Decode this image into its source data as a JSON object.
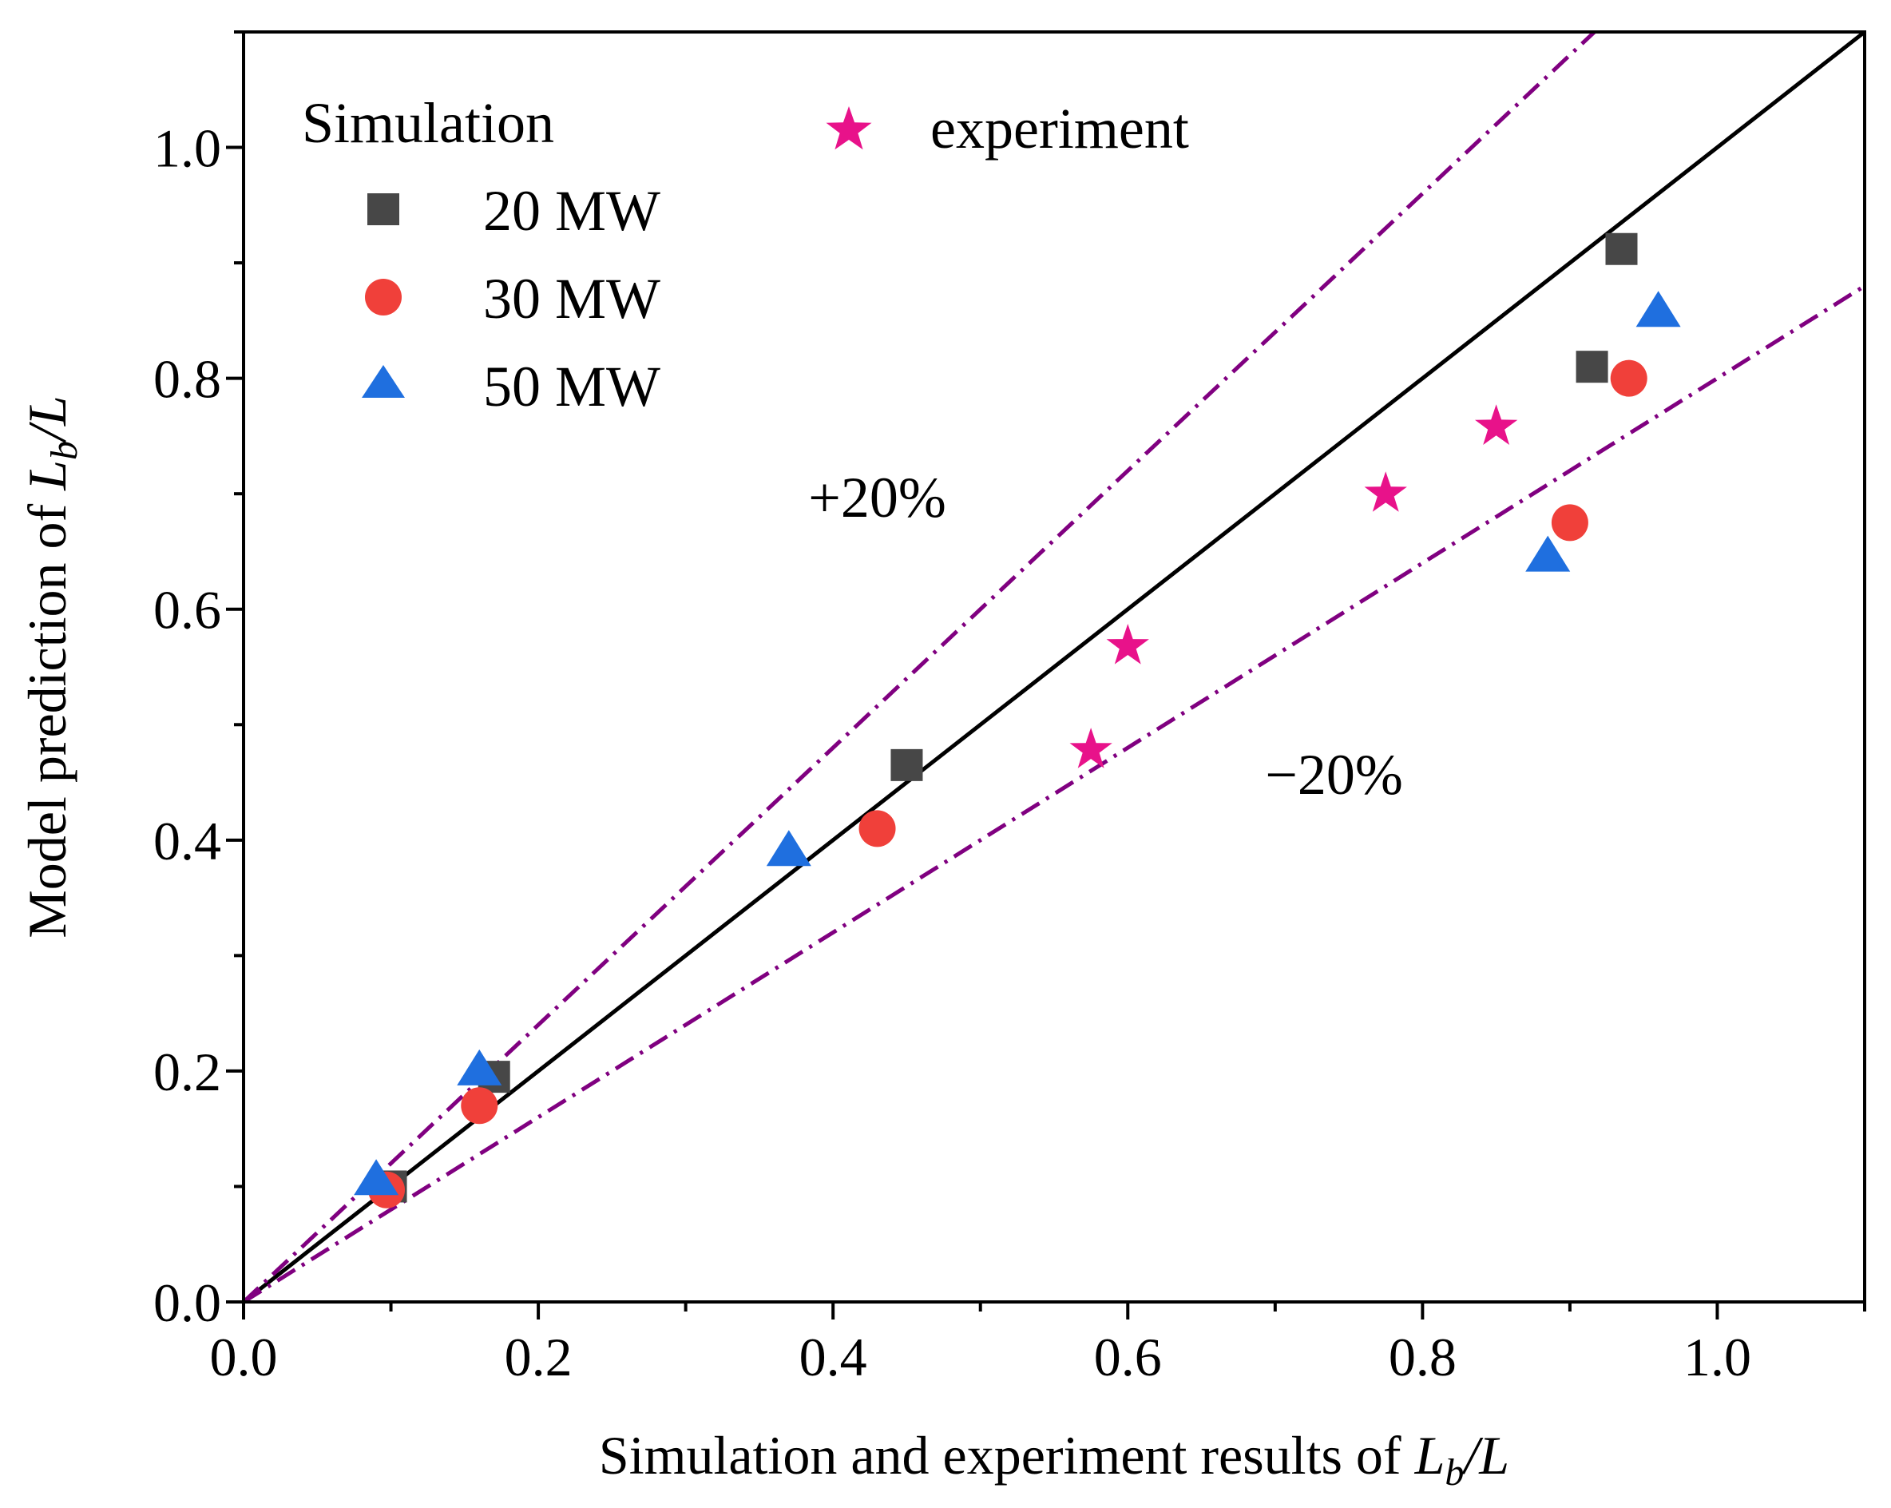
{
  "chart_data": {
    "type": "scatter",
    "xlabel": "Simulation and experiment results of L_b/L",
    "ylabel": "Model prediction of L_b/L",
    "xlabel_text": "Simulation and experiment results of ",
    "ylabel_text": "Model prediction of ",
    "label_var": "L",
    "label_sub": "b",
    "label_div": "/L",
    "xlim": [
      0,
      1.1
    ],
    "ylim": [
      0,
      1.1
    ],
    "x_ticks": [
      "0.0",
      "0.2",
      "0.4",
      "0.6",
      "0.8",
      "1.0"
    ],
    "y_ticks": [
      "0.0",
      "0.2",
      "0.4",
      "0.6",
      "0.8",
      "1.0"
    ],
    "grid": false,
    "legend_placement": "top-left",
    "legend_title": "Simulation",
    "series": [
      {
        "name": "20 MW",
        "marker": "square",
        "color": "#474747",
        "x": [
          0.1,
          0.17,
          0.45,
          0.915,
          0.935
        ],
        "y": [
          0.1,
          0.195,
          0.465,
          0.81,
          0.912
        ]
      },
      {
        "name": "30 MW",
        "marker": "circle",
        "color": "#f0403a",
        "x": [
          0.097,
          0.16,
          0.43,
          0.9,
          0.94
        ],
        "y": [
          0.097,
          0.17,
          0.41,
          0.675,
          0.8
        ]
      },
      {
        "name": "50 MW",
        "marker": "triangle",
        "color": "#1f6fdf",
        "x": [
          0.09,
          0.16,
          0.37,
          0.885,
          0.96
        ],
        "y": [
          0.105,
          0.2,
          0.39,
          0.645,
          0.857
        ]
      },
      {
        "name": "experiment",
        "marker": "star",
        "color": "#e8128a",
        "x": [
          0.575,
          0.6,
          0.775,
          0.85
        ],
        "y": [
          0.478,
          0.568,
          0.7,
          0.758
        ]
      }
    ],
    "reference_lines": [
      {
        "name": "y = x",
        "slope": 1.0,
        "style": "solid",
        "color": "#000000"
      },
      {
        "name": "+20%",
        "slope": 1.2,
        "style": "dash-dot",
        "color": "#800080"
      },
      {
        "name": "-20%",
        "slope": 0.8,
        "style": "dash-dot",
        "color": "#800080"
      }
    ],
    "annotations": [
      {
        "text": "+20%",
        "x": 0.43,
        "y": 0.68
      },
      {
        "text": "−20%",
        "x": 0.74,
        "y": 0.44
      }
    ]
  }
}
